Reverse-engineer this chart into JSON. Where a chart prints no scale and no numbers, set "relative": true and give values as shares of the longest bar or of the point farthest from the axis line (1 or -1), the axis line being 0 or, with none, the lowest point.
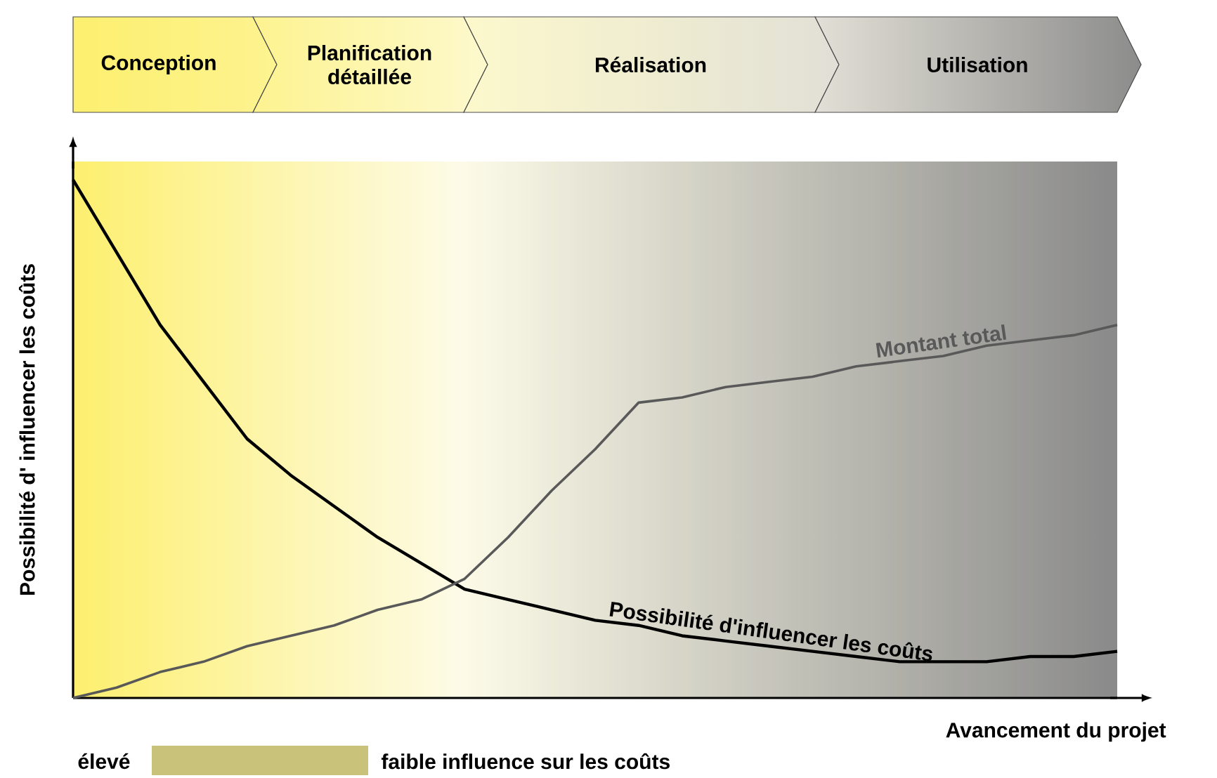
{
  "chart_data": {
    "type": "line",
    "relative": true,
    "xlabel": "Avancement du projet",
    "ylabel": "Possibilité d' influencer les coûts",
    "categories": [
      null,
      null,
      null,
      null,
      null,
      null,
      null,
      null,
      null,
      null,
      null,
      null,
      null,
      null,
      null,
      null,
      null,
      null,
      null,
      null,
      null,
      null,
      null,
      null,
      null
    ],
    "series": [
      {
        "name": "Possibilité d'influencer les coûts",
        "color": "#000000",
        "values": [
          1.0,
          0.86,
          0.72,
          0.61,
          0.5,
          0.43,
          0.37,
          0.31,
          0.26,
          0.21,
          0.19,
          0.17,
          0.15,
          0.14,
          0.12,
          0.11,
          0.1,
          0.09,
          0.08,
          0.07,
          0.07,
          0.07,
          0.08,
          0.08,
          0.09
        ]
      },
      {
        "name": "Montant total",
        "color": "#595959",
        "values": [
          0,
          0.02,
          0.05,
          0.07,
          0.1,
          0.12,
          0.14,
          0.17,
          0.19,
          0.23,
          0.31,
          0.4,
          0.48,
          0.57,
          0.58,
          0.6,
          0.61,
          0.62,
          0.64,
          0.65,
          0.66,
          0.68,
          0.69,
          0.7,
          0.72
        ]
      }
    ],
    "annotations": [
      "Conception",
      "Planification détaillée",
      "Réalisation",
      "Utilisation",
      "élevé",
      "faible influence sur les coûts"
    ]
  }
}
